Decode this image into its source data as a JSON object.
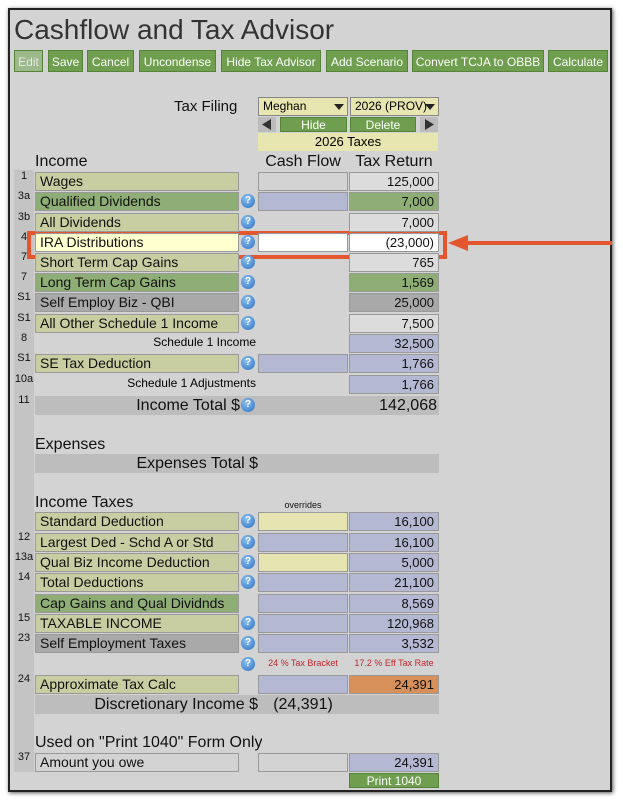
{
  "header": {
    "title": "Cashflow and Tax Advisor"
  },
  "toolbar": [
    "Edit",
    "Save",
    "Cancel",
    "Uncondense",
    "Hide Tax Advisor",
    "Add Scenario",
    "Convert TCJA to OBBB",
    "Calculate"
  ],
  "filing": {
    "label": "Tax Filing",
    "person": "Meghan",
    "year": "2026 (PROV)",
    "hide": "Hide",
    "delete": "Delete",
    "title": "2026 Taxes"
  },
  "columns": {
    "income": "Income",
    "cash_flow": "Cash Flow",
    "tax_return": "Tax Return"
  },
  "income_rows": [
    {
      "line": "1",
      "label": "Wages",
      "tax_return": "125,000"
    },
    {
      "line": "3a",
      "label": "Qualified Dividends",
      "tax_return": "7,000"
    },
    {
      "line": "3b",
      "label": "All Dividends",
      "tax_return": "7,000"
    },
    {
      "line": "4",
      "label": "IRA Distributions",
      "tax_return": "(23,000)"
    },
    {
      "line": "7",
      "label": "Short Term Cap Gains",
      "tax_return": "765"
    },
    {
      "line": "7",
      "label": "Long Term Cap Gains",
      "tax_return": "1,569"
    },
    {
      "line": "S1",
      "label": "Self Employ Biz - QBI",
      "tax_return": "25,000"
    },
    {
      "line": "S1",
      "label": "All Other Schedule 1 Income",
      "tax_return": "7,500"
    },
    {
      "line": "8",
      "label": "Schedule 1 Income",
      "tax_return": "32,500"
    },
    {
      "line": "S1",
      "label": "SE Tax Deduction",
      "tax_return": "1,766"
    },
    {
      "line": "10a",
      "label": "Schedule 1 Adjustments",
      "tax_return": "1,766"
    }
  ],
  "income_total": {
    "line": "11",
    "label": "Income Total $",
    "tax_return": "142,068"
  },
  "expenses": {
    "heading": "Expenses",
    "total": "Expenses Total $"
  },
  "taxes": {
    "heading": "Income Taxes",
    "overrides": "overrides",
    "rows": [
      {
        "label": "Standard Deduction",
        "tax_return": "16,100"
      },
      {
        "line": "12",
        "label": "Largest Ded - Schd A or Std",
        "tax_return": "16,100"
      },
      {
        "line": "13a",
        "label": "Qual Biz Income Deduction",
        "tax_return": "5,000"
      },
      {
        "line": "14",
        "label": "Total Deductions",
        "tax_return": "21,100"
      },
      {
        "label": "Cap Gains and Qual Dividnds",
        "tax_return": "8,569"
      },
      {
        "line": "15",
        "label": "TAXABLE INCOME",
        "tax_return": "120,968"
      },
      {
        "line": "23",
        "label": "Self Employment Taxes",
        "tax_return": "3,532"
      }
    ],
    "bracket": "24 % Tax Bracket",
    "eff_rate": "17.2 % Eff Tax Rate",
    "approx": {
      "line": "24",
      "label": "Approximate Tax Calc",
      "tax_return": "24,391"
    },
    "discretionary": {
      "label": "Discretionary Income $",
      "cash_flow": "(24,391)"
    }
  },
  "print_form": {
    "heading": "Used on \"Print 1040\" Form Only",
    "line": "37",
    "label": "Amount you owe",
    "tax_return": "24,391",
    "button": "Print 1040"
  }
}
